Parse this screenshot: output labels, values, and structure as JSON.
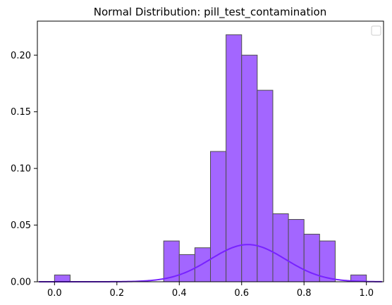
{
  "chart_data": {
    "type": "bar",
    "title": "Normal Distribution: pill_test_contamination",
    "xlabel": "",
    "ylabel": "",
    "xlim": [
      -0.055,
      1.055
    ],
    "ylim": [
      0,
      0.23
    ],
    "x_ticks": [
      0.0,
      0.2,
      0.4,
      0.6,
      0.8,
      1.0
    ],
    "x_tick_labels": [
      "0.0",
      "0.2",
      "0.4",
      "0.6",
      "0.8",
      "1.0"
    ],
    "y_ticks": [
      0.0,
      0.05,
      0.1,
      0.15,
      0.2
    ],
    "y_tick_labels": [
      "0.00",
      "0.05",
      "0.10",
      "0.15",
      "0.20"
    ],
    "grid": false,
    "legend": {
      "placement": "top-right",
      "entries": []
    },
    "histogram": {
      "bin_width": 0.05,
      "bins": [
        {
          "start": 0.0,
          "value": 0.006
        },
        {
          "start": 0.05,
          "value": 0.0
        },
        {
          "start": 0.1,
          "value": 0.0
        },
        {
          "start": 0.15,
          "value": 0.0
        },
        {
          "start": 0.2,
          "value": 0.0
        },
        {
          "start": 0.25,
          "value": 0.0
        },
        {
          "start": 0.3,
          "value": 0.0
        },
        {
          "start": 0.35,
          "value": 0.036
        },
        {
          "start": 0.4,
          "value": 0.024
        },
        {
          "start": 0.45,
          "value": 0.03
        },
        {
          "start": 0.5,
          "value": 0.115
        },
        {
          "start": 0.55,
          "value": 0.218
        },
        {
          "start": 0.6,
          "value": 0.2
        },
        {
          "start": 0.65,
          "value": 0.169
        },
        {
          "start": 0.7,
          "value": 0.06
        },
        {
          "start": 0.75,
          "value": 0.055
        },
        {
          "start": 0.8,
          "value": 0.042
        },
        {
          "start": 0.85,
          "value": 0.036
        },
        {
          "start": 0.9,
          "value": 0.0
        },
        {
          "start": 0.95,
          "value": 0.006
        }
      ],
      "fill_color": "#a366ff",
      "edge_color": "#4d4d4d"
    },
    "curve": {
      "type": "normal-density",
      "x_range": [
        -0.05,
        1.05
      ],
      "mean": 0.62,
      "std": 0.12,
      "peak": 0.0328,
      "color": "#7722ff"
    }
  }
}
